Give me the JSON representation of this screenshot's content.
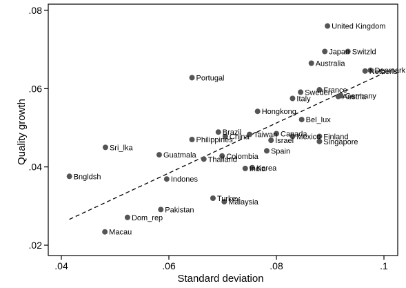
{
  "chart_data": {
    "type": "scatter",
    "xlabel": "Standard deviation",
    "ylabel": "Quality growth",
    "xlim": [
      0.04,
      0.1
    ],
    "ylim": [
      0.02,
      0.08
    ],
    "x_ticks": [
      0.04,
      0.06,
      0.08,
      0.1
    ],
    "x_tick_labels": [
      ".04",
      ".06",
      ".08",
      ".1"
    ],
    "y_ticks": [
      0.02,
      0.04,
      0.06,
      0.08
    ],
    "y_tick_labels": [
      ".02",
      ".04",
      ".06",
      ".08"
    ],
    "grid": false,
    "legend": "none",
    "marker_color": "#555555",
    "fit_line": {
      "style": "dashed",
      "x": [
        0.0415,
        0.1
      ],
      "y": [
        0.0266,
        0.064
      ]
    },
    "points": [
      {
        "label": "United Kingdom",
        "x": 0.0895,
        "y": 0.076
      },
      {
        "label": "Japan",
        "x": 0.089,
        "y": 0.0695
      },
      {
        "label": "Switzld",
        "x": 0.0933,
        "y": 0.0695
      },
      {
        "label": "Australia",
        "x": 0.0865,
        "y": 0.0665
      },
      {
        "label": "Portugal",
        "x": 0.0643,
        "y": 0.0628
      },
      {
        "label": "Netherls",
        "x": 0.0965,
        "y": 0.0645
      },
      {
        "label": "Denmark",
        "x": 0.0975,
        "y": 0.0647
      },
      {
        "label": "Sweden",
        "x": 0.0845,
        "y": 0.0591
      },
      {
        "label": "France",
        "x": 0.088,
        "y": 0.0597
      },
      {
        "label": "Italy",
        "x": 0.083,
        "y": 0.0575
      },
      {
        "label": "Austria",
        "x": 0.0915,
        "y": 0.058
      },
      {
        "label": "Germany",
        "x": 0.092,
        "y": 0.0582
      },
      {
        "label": "Hongkong",
        "x": 0.0765,
        "y": 0.0542
      },
      {
        "label": "Bel_lux",
        "x": 0.0847,
        "y": 0.0521
      },
      {
        "label": "Brazil",
        "x": 0.0692,
        "y": 0.0489
      },
      {
        "label": "China",
        "x": 0.0705,
        "y": 0.0478
      },
      {
        "label": "Taiwan",
        "x": 0.075,
        "y": 0.0483
      },
      {
        "label": "Canada",
        "x": 0.08,
        "y": 0.0485
      },
      {
        "label": "Israel",
        "x": 0.079,
        "y": 0.0468
      },
      {
        "label": "Mexico",
        "x": 0.083,
        "y": 0.0478
      },
      {
        "label": "Finland",
        "x": 0.088,
        "y": 0.0478
      },
      {
        "label": "Singapore",
        "x": 0.088,
        "y": 0.0465
      },
      {
        "label": "Philippines",
        "x": 0.0643,
        "y": 0.047
      },
      {
        "label": "Spain",
        "x": 0.0782,
        "y": 0.0441
      },
      {
        "label": "Sri_lka",
        "x": 0.0482,
        "y": 0.045
      },
      {
        "label": "Guatmala",
        "x": 0.0582,
        "y": 0.0431
      },
      {
        "label": "Colombia",
        "x": 0.0699,
        "y": 0.0428
      },
      {
        "label": "Thailand",
        "x": 0.0665,
        "y": 0.042
      },
      {
        "label": "India",
        "x": 0.0742,
        "y": 0.0396
      },
      {
        "label": "Korea",
        "x": 0.0755,
        "y": 0.0398
      },
      {
        "label": "Bngldsh",
        "x": 0.0415,
        "y": 0.0376
      },
      {
        "label": "Indones",
        "x": 0.0596,
        "y": 0.0369
      },
      {
        "label": "Turkey",
        "x": 0.0682,
        "y": 0.032
      },
      {
        "label": "Malaysia",
        "x": 0.0703,
        "y": 0.0311
      },
      {
        "label": "Pakistan",
        "x": 0.0585,
        "y": 0.0291
      },
      {
        "label": "Dom_rep",
        "x": 0.0523,
        "y": 0.0271
      },
      {
        "label": "Macau",
        "x": 0.0481,
        "y": 0.0234
      }
    ]
  }
}
